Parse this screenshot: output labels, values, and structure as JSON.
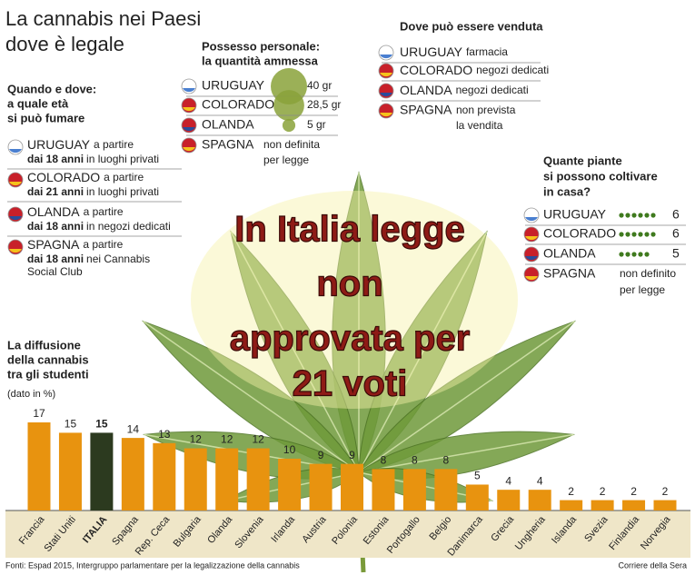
{
  "header": {
    "title_lines": [
      "La cannabis nei Paesi",
      "dove è legale"
    ]
  },
  "age": {
    "heading_lines": [
      "Quando e dove:",
      "a quale età",
      "si può fumare"
    ],
    "rows": [
      {
        "country": "URUGUAY",
        "text": "a partire",
        "age": "dai 18 anni",
        "place": [
          "in luoghi privati"
        ]
      },
      {
        "country": "COLORADO",
        "text": "a partire",
        "age": "dai 21 anni",
        "place": [
          "in luoghi privati"
        ]
      },
      {
        "country": "OLANDA",
        "text": "a partire",
        "age": "dai 18 anni",
        "place": [
          "in negozi dedicati"
        ]
      },
      {
        "country": "SPAGNA",
        "text": "a partire",
        "age": "dai 18 anni",
        "place": [
          "nei Cannabis",
          "Social Club"
        ]
      }
    ]
  },
  "possession": {
    "heading_lines": [
      "Possesso personale:",
      "la quantità ammessa"
    ],
    "rows": [
      {
        "country": "URUGUAY",
        "amount": 40,
        "label": "40 gr"
      },
      {
        "country": "COLORADO",
        "amount": 28.5,
        "label": "28,5 gr"
      },
      {
        "country": "OLANDA",
        "amount": 5,
        "label": "5 gr"
      },
      {
        "country": "SPAGNA",
        "note": [
          "non definita",
          "per legge"
        ]
      }
    ]
  },
  "sale": {
    "heading": "Dove può essere venduta",
    "rows": [
      {
        "country": "URUGUAY",
        "where": [
          "farmacia"
        ]
      },
      {
        "country": "COLORADO",
        "where": [
          "negozi dedicati"
        ]
      },
      {
        "country": "OLANDA",
        "where": [
          "negozi dedicati"
        ]
      },
      {
        "country": "SPAGNA",
        "where": [
          "non prevista",
          "la vendita"
        ]
      }
    ]
  },
  "plants": {
    "heading_lines": [
      "Quante piante",
      "si possono coltivare",
      "in casa?"
    ],
    "rows": [
      {
        "country": "URUGUAY",
        "count": 6
      },
      {
        "country": "COLORADO",
        "count": 6
      },
      {
        "country": "OLANDA",
        "count": 5
      },
      {
        "country": "SPAGNA",
        "note": [
          "non definito",
          "per legge"
        ]
      }
    ]
  },
  "headline_lines": [
    "In Italia legge",
    "non",
    "approvata per",
    "21 voti"
  ],
  "chart_data": {
    "type": "bar",
    "title_lines": [
      "La diffusione",
      "della cannabis",
      "tra gli studenti"
    ],
    "subtitle": "(dato in %)",
    "categories": [
      "Francia",
      "Stati Uniti",
      "ITALIA",
      "Spagna",
      "Rep. Ceca",
      "Bulgaria",
      "Olanda",
      "Slovenia",
      "Irlanda",
      "Austria",
      "Polonia",
      "Estonia",
      "Portogallo",
      "Belgio",
      "Danimarca",
      "Grecia",
      "Ungheria",
      "Islanda",
      "Svezia",
      "Finlandia",
      "Norvegia"
    ],
    "values": [
      17,
      15,
      15,
      14,
      13,
      12,
      12,
      12,
      10,
      9,
      9,
      8,
      8,
      8,
      5,
      4,
      4,
      2,
      2,
      2,
      2
    ],
    "colors": [
      "#e8930f",
      "#e8930f",
      "#2c3a1f",
      "#e8930f",
      "#e8930f",
      "#e8930f",
      "#e8930f",
      "#e8930f",
      "#e8930f",
      "#e8930f",
      "#e8930f",
      "#e8930f",
      "#e8930f",
      "#e8930f",
      "#e8930f",
      "#e8930f",
      "#e8930f",
      "#e8930f",
      "#e8930f",
      "#e8930f",
      "#e8930f"
    ],
    "ylim": [
      0,
      17
    ]
  },
  "footer": {
    "source": "Fonti: Espad 2015, Intergruppo parlamentare per la legalizzazione della cannabis",
    "credit": "Corriere della Sera"
  }
}
